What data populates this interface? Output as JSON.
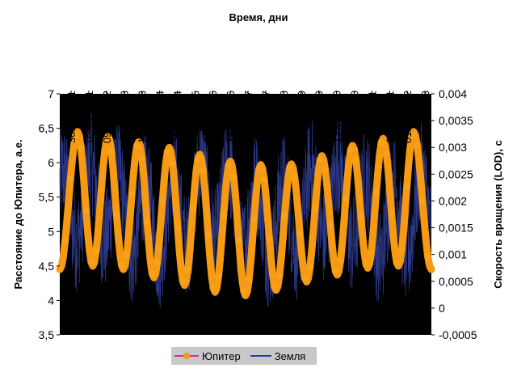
{
  "chart_data": {
    "type": "line",
    "title": "Время, дни",
    "ylabel_left": "Расстояние до Юпитера, а.е.",
    "ylabel_right": "Скорость вращения (LOD), с",
    "x_ticks": [
      "30.03.1981",
      "03.11.1981",
      "09.06.1982",
      "13.01.1983",
      "19.08.1983",
      "24.03.1984",
      "28.10.1984",
      "03.06.1985",
      "07.01.1986",
      "13.08.1986",
      "19.03.1987",
      "23.10.1987",
      "28.05.1988",
      "01.01.1989",
      "07.08.1989",
      "13.03.1990",
      "17.10.1990",
      "23.05.1991",
      "27.12.1991",
      "01.08.1992",
      "07.03.1993"
    ],
    "y_left_ticks": [
      "3,5",
      "4",
      "4,5",
      "5",
      "5,5",
      "6",
      "6,5",
      "7"
    ],
    "y_left_range": [
      3.5,
      7
    ],
    "y_right_ticks": [
      "-0,0005",
      "0",
      "0,0005",
      "0,001",
      "0,0015",
      "0,002",
      "0,0025",
      "0,003",
      "0,0035",
      "0,004"
    ],
    "y_right_range": [
      -0.0005,
      0.004
    ],
    "legend_position": "bottom",
    "series": [
      {
        "name": "Юпитер",
        "axis": "left",
        "color": "#f59a12",
        "peaks": [
          6.45,
          6.38,
          6.3,
          6.22,
          6.12,
          6.02,
          5.97,
          5.98,
          6.1,
          6.25,
          6.35,
          6.45
        ],
        "troughs": [
          4.5,
          4.45,
          4.33,
          4.22,
          4.12,
          4.07,
          4.15,
          4.27,
          4.37,
          4.47,
          4.5
        ]
      },
      {
        "name": "Земля",
        "axis": "right",
        "color": "#2e3a8c"
      }
    ]
  },
  "legend": {
    "jupiter": "Юпитер",
    "earth": "Земля"
  }
}
